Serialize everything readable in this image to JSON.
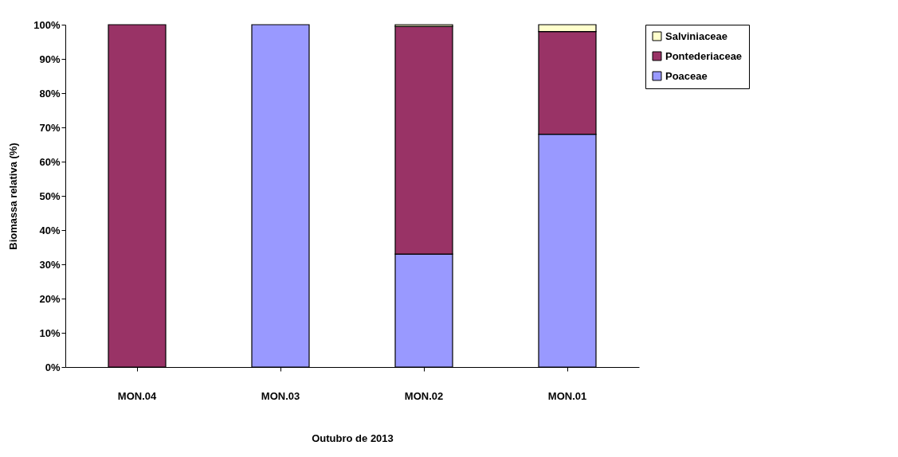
{
  "chart_data": {
    "type": "bar",
    "stacked": true,
    "xlabel": "Outubro de 2013",
    "ylabel": "Biomassa relativa (%)",
    "categories": [
      "MON.04",
      "MON.03",
      "MON.02",
      "MON.01"
    ],
    "series": [
      {
        "name": "Poaceae",
        "color": "#9999ff",
        "values": [
          0,
          100,
          33,
          68
        ]
      },
      {
        "name": "Pontederiaceae",
        "color": "#993366",
        "values": [
          100,
          0,
          66.5,
          30
        ]
      },
      {
        "name": "Salviniaceae",
        "color": "#ffffcc",
        "values": [
          0,
          0,
          0.5,
          2
        ]
      }
    ],
    "ylim": [
      0,
      100
    ],
    "yticks": [
      {
        "value": 0,
        "label": "0%"
      },
      {
        "value": 10,
        "label": "10%"
      },
      {
        "value": 20,
        "label": "20%"
      },
      {
        "value": 30,
        "label": "30%"
      },
      {
        "value": 40,
        "label": "40%"
      },
      {
        "value": 50,
        "label": "50%"
      },
      {
        "value": 60,
        "label": "60%"
      },
      {
        "value": 70,
        "label": "70%"
      },
      {
        "value": 80,
        "label": "80%"
      },
      {
        "value": 90,
        "label": "90%"
      },
      {
        "value": 100,
        "label": "100%"
      }
    ],
    "grid": false,
    "legend": "right"
  }
}
